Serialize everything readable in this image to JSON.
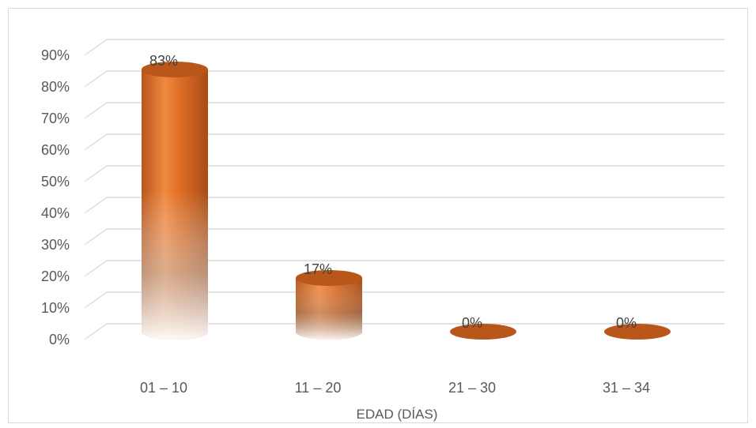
{
  "chart_data": {
    "type": "bar",
    "style": "3d-cylinder",
    "categories": [
      "01 – 10",
      "11 – 20",
      "21 – 30",
      "31 – 34"
    ],
    "values": [
      83,
      17,
      0,
      0
    ],
    "data_labels": [
      "83%",
      "17%",
      "0%",
      "0%"
    ],
    "xlabel": "EDAD (DÍAS)",
    "ylabel": "",
    "ylim": [
      0,
      90
    ],
    "yticks": [
      "0%",
      "10%",
      "20%",
      "30%",
      "40%",
      "50%",
      "60%",
      "70%",
      "80%",
      "90%"
    ],
    "grid": true,
    "colors": {
      "bar": "#E07028",
      "bar_dark": "#B9561A",
      "bar_light": "#F08A40",
      "grid": "#D0D0D0",
      "text": "#595959"
    }
  }
}
